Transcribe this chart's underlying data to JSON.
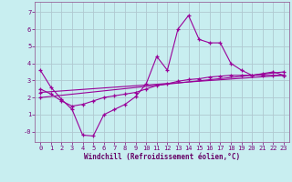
{
  "xlabel": "Windchill (Refroidissement éolien,°C)",
  "background_color": "#c8eef0",
  "grid_color": "#b0c8d0",
  "line_color": "#990099",
  "xlim": [
    -0.5,
    23.5
  ],
  "ylim": [
    -0.6,
    7.6
  ],
  "yticks": [
    0,
    1,
    2,
    3,
    4,
    5,
    6,
    7
  ],
  "ytick_labels": [
    "-0",
    "1",
    "2",
    "3",
    "4",
    "5",
    "6",
    "7"
  ],
  "xticks": [
    0,
    1,
    2,
    3,
    4,
    5,
    6,
    7,
    8,
    9,
    10,
    11,
    12,
    13,
    14,
    15,
    16,
    17,
    18,
    19,
    20,
    21,
    22,
    23
  ],
  "series1_x": [
    0,
    1,
    2,
    3,
    4,
    5,
    6,
    7,
    8,
    9,
    10,
    11,
    12,
    13,
    14,
    15,
    16,
    17,
    18,
    19,
    20,
    21,
    22,
    23
  ],
  "series1_y": [
    3.6,
    2.6,
    1.9,
    1.3,
    -0.2,
    -0.25,
    1.0,
    1.3,
    1.6,
    2.05,
    2.8,
    4.4,
    3.6,
    6.0,
    6.8,
    5.4,
    5.2,
    5.2,
    4.0,
    3.6,
    3.3,
    3.4,
    3.5,
    3.3
  ],
  "series2_x": [
    0,
    1,
    2,
    3,
    4,
    5,
    6,
    7,
    8,
    9,
    10,
    11,
    12,
    13,
    14,
    15,
    16,
    17,
    18,
    19,
    20,
    21,
    22,
    23
  ],
  "series2_y": [
    2.5,
    2.2,
    1.8,
    1.5,
    1.6,
    1.8,
    2.0,
    2.1,
    2.2,
    2.3,
    2.5,
    2.7,
    2.8,
    2.95,
    3.05,
    3.1,
    3.2,
    3.25,
    3.3,
    3.3,
    3.3,
    3.3,
    3.3,
    3.3
  ],
  "series3_x": [
    0,
    23
  ],
  "series3_y": [
    2.0,
    3.5
  ],
  "series4_x": [
    0,
    23
  ],
  "series4_y": [
    2.3,
    3.3
  ]
}
